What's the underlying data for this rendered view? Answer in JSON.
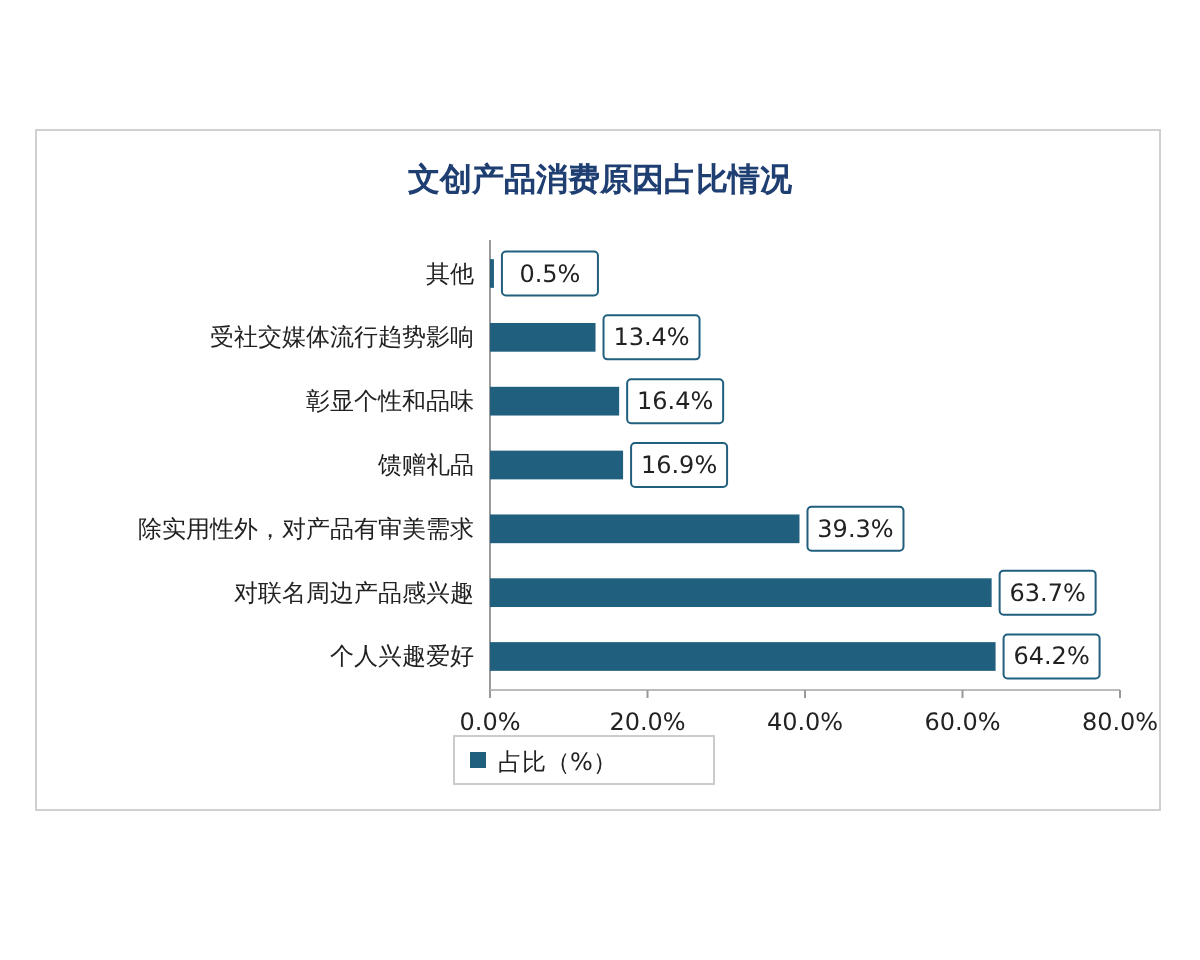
{
  "chart_data": {
    "type": "bar",
    "orientation": "horizontal",
    "title": "文创产品消费原因占比情况",
    "categories": [
      "其他",
      "受社交媒体流行趋势影响",
      "彰显个性和品味",
      "馈赠礼品",
      "除实用性外，对产品有审美需求",
      "对联名周边产品感兴趣",
      "个人兴趣爱好"
    ],
    "series": [
      {
        "name": "占比（%）",
        "color": "#215f7e",
        "values": [
          0.5,
          13.4,
          16.4,
          16.9,
          39.3,
          63.7,
          64.2
        ],
        "value_labels": [
          "0.5%",
          "13.4%",
          "16.4%",
          "16.9%",
          "39.3%",
          "63.7%",
          "64.2%"
        ]
      }
    ],
    "xlim": [
      0,
      80
    ],
    "xticks": [
      {
        "value": 0,
        "label": "0.0%"
      },
      {
        "value": 20,
        "label": "20.0%"
      },
      {
        "value": 40,
        "label": "40.0%"
      },
      {
        "value": 60,
        "label": "60.0%"
      },
      {
        "value": 80,
        "label": "80.0%"
      }
    ],
    "legend": "bottom left"
  }
}
